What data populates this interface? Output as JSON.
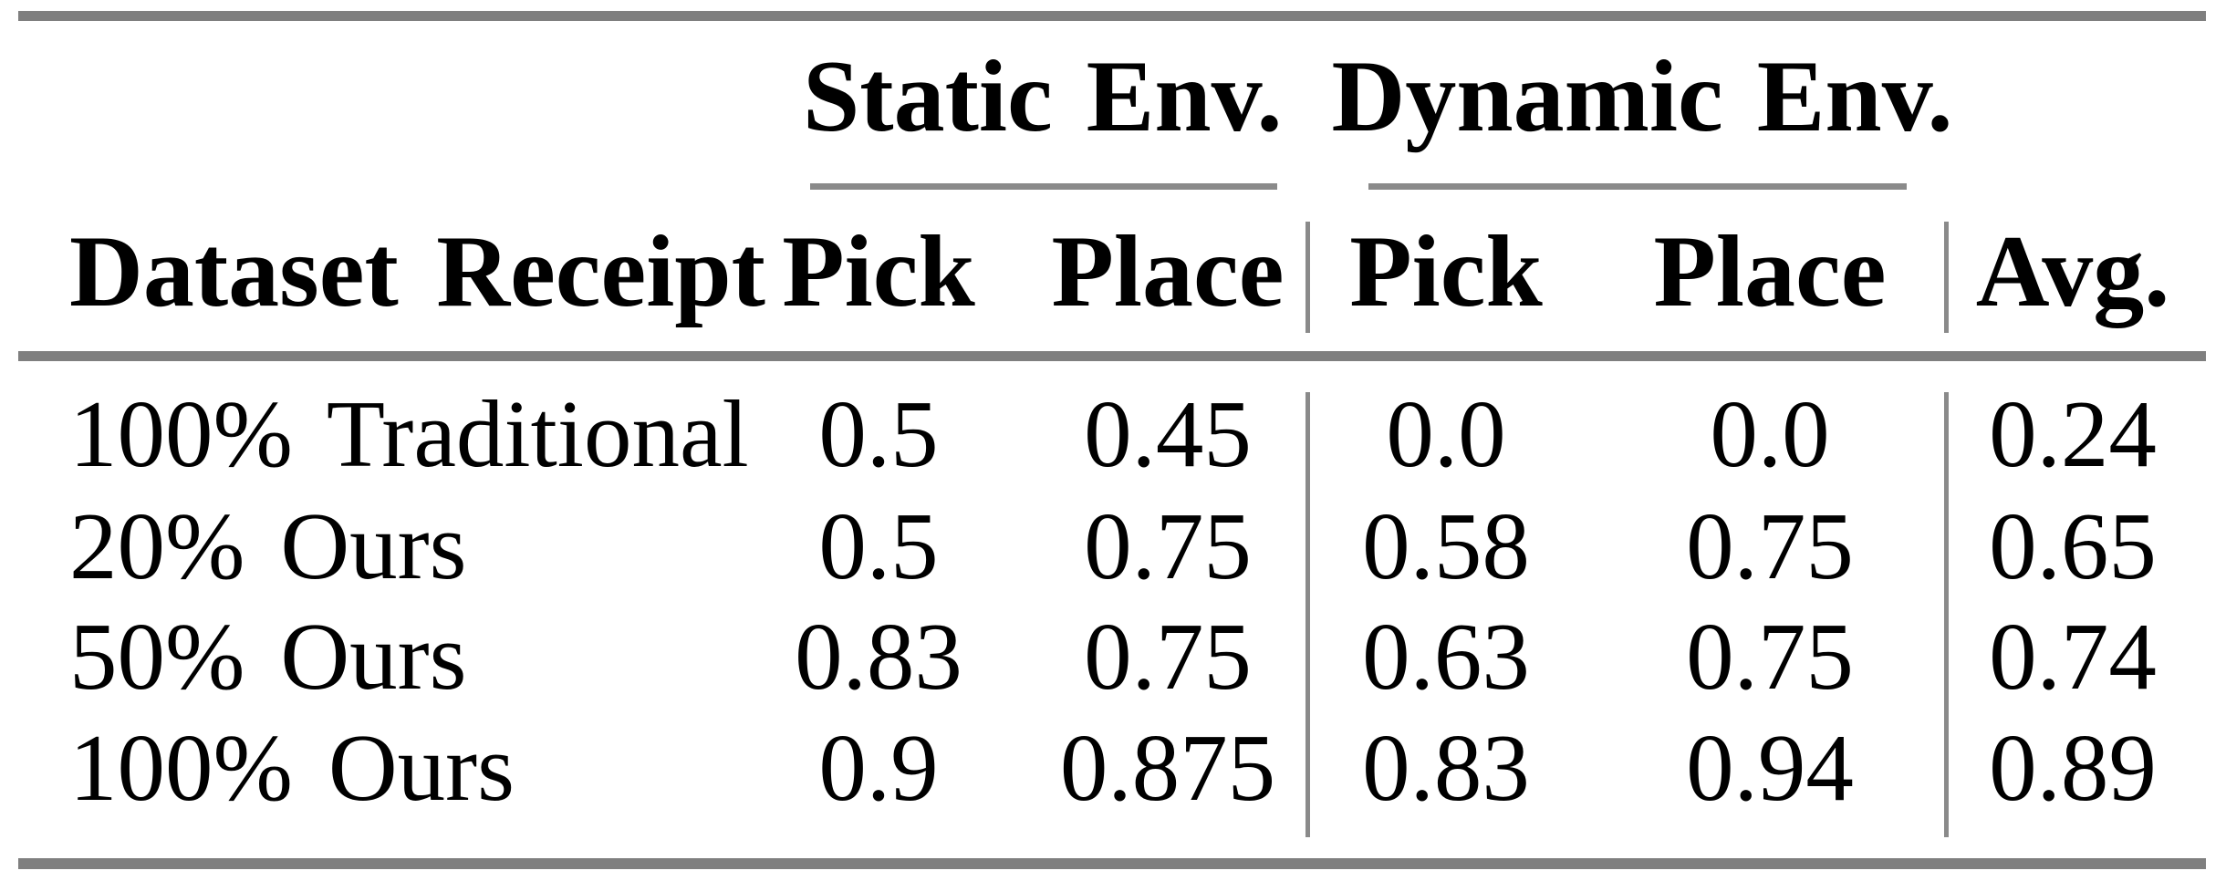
{
  "table": {
    "row_label_header": "Dataset Receipt",
    "groups": [
      {
        "label": "Static Env.",
        "columns": [
          "Pick",
          "Place"
        ]
      },
      {
        "label": "Dynamic Env.",
        "columns": [
          "Pick",
          "Place"
        ]
      }
    ],
    "avg_header": "Avg.",
    "rows": [
      {
        "label": "100% Traditional",
        "cells": [
          "0.5",
          "0.45",
          "0.0",
          "0.0",
          "0.24"
        ]
      },
      {
        "label": "20% Ours",
        "cells": [
          "0.5",
          "0.75",
          "0.58",
          "0.75",
          "0.65"
        ]
      },
      {
        "label": "50% Ours",
        "cells": [
          "0.83",
          "0.75",
          "0.63",
          "0.75",
          "0.74"
        ]
      },
      {
        "label": "100% Ours",
        "cells": [
          "0.9",
          "0.875",
          "0.83",
          "0.94",
          "0.89"
        ]
      }
    ]
  },
  "colors": {
    "background": "#ffffff",
    "text": "#000000",
    "rule_thick": "#7f7f7f",
    "rule_thin": "#8a8a8a"
  },
  "chart_data": {
    "type": "table",
    "columns": [
      "Dataset Receipt",
      "Static Env. Pick",
      "Static Env. Place",
      "Dynamic Env. Pick",
      "Dynamic Env. Place",
      "Avg."
    ],
    "rows": [
      [
        "100% Traditional",
        0.5,
        0.45,
        0.0,
        0.0,
        0.24
      ],
      [
        "20% Ours",
        0.5,
        0.75,
        0.58,
        0.75,
        0.65
      ],
      [
        "50% Ours",
        0.83,
        0.75,
        0.63,
        0.75,
        0.74
      ],
      [
        "100% Ours",
        0.9,
        0.875,
        0.83,
        0.94,
        0.89
      ]
    ]
  }
}
